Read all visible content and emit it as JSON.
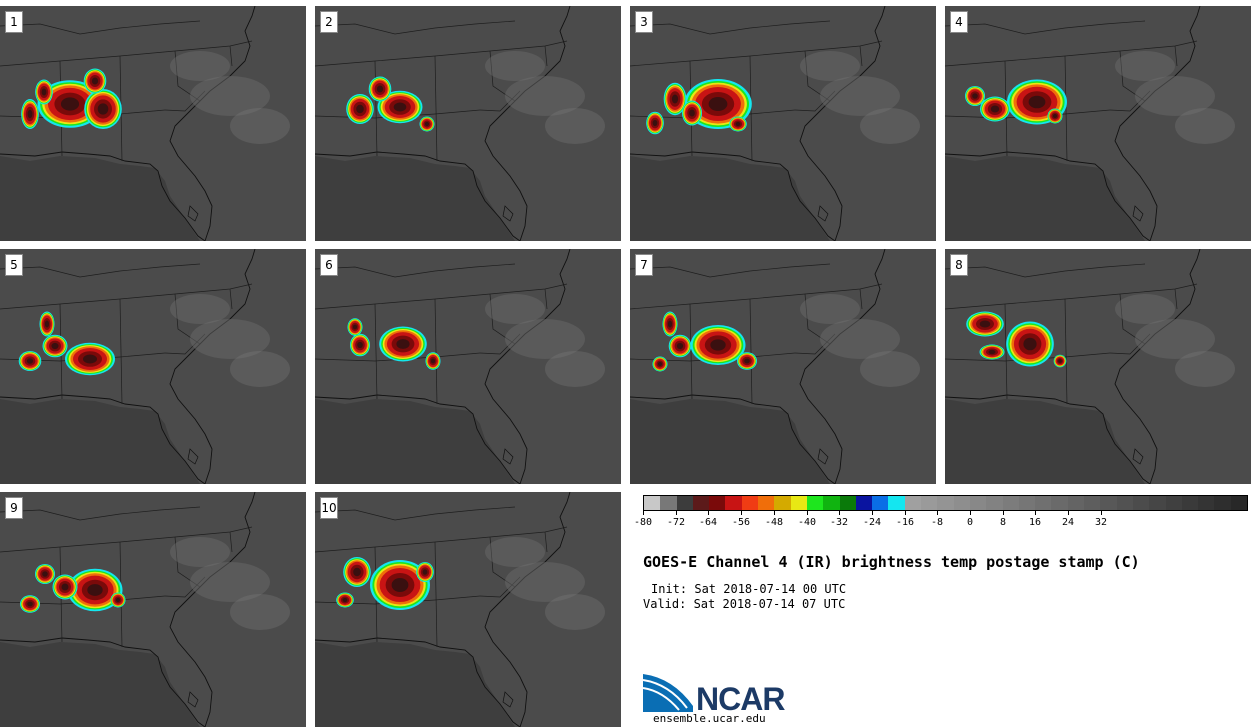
{
  "panels": [
    {
      "label": "1",
      "storms": [
        [
          70,
          98,
          26,
          19
        ],
        [
          103,
          103,
          15,
          16
        ],
        [
          44,
          86,
          7,
          10
        ],
        [
          30,
          108,
          7,
          12
        ],
        [
          95,
          75,
          9,
          10
        ]
      ]
    },
    {
      "label": "2",
      "storms": [
        [
          85,
          101,
          18,
          13
        ],
        [
          45,
          103,
          11,
          12
        ],
        [
          65,
          83,
          9,
          10
        ],
        [
          112,
          118,
          6,
          6
        ]
      ]
    },
    {
      "label": "3",
      "storms": [
        [
          88,
          98,
          27,
          20
        ],
        [
          45,
          93,
          9,
          13
        ],
        [
          62,
          107,
          8,
          10
        ],
        [
          25,
          117,
          7,
          9
        ],
        [
          108,
          118,
          7,
          6
        ]
      ]
    },
    {
      "label": "4",
      "storms": [
        [
          92,
          96,
          24,
          18
        ],
        [
          50,
          103,
          12,
          10
        ],
        [
          110,
          110,
          6,
          6
        ],
        [
          30,
          90,
          8,
          8
        ]
      ]
    },
    {
      "label": "5",
      "storms": [
        [
          90,
          110,
          20,
          13
        ],
        [
          55,
          97,
          10,
          9
        ],
        [
          30,
          112,
          9,
          8
        ],
        [
          47,
          75,
          6,
          10
        ]
      ]
    },
    {
      "label": "6",
      "storms": [
        [
          88,
          95,
          19,
          14
        ],
        [
          45,
          96,
          8,
          9
        ],
        [
          118,
          112,
          6,
          7
        ],
        [
          40,
          78,
          6,
          7
        ]
      ]
    },
    {
      "label": "7",
      "storms": [
        [
          88,
          96,
          22,
          16
        ],
        [
          50,
          97,
          9,
          9
        ],
        [
          117,
          112,
          8,
          7
        ],
        [
          40,
          75,
          6,
          10
        ],
        [
          30,
          115,
          6,
          6
        ]
      ]
    },
    {
      "label": "8",
      "storms": [
        [
          85,
          95,
          19,
          18
        ],
        [
          40,
          75,
          15,
          10
        ],
        [
          47,
          103,
          10,
          6
        ],
        [
          115,
          112,
          5,
          5
        ]
      ]
    },
    {
      "label": "9",
      "storms": [
        [
          95,
          98,
          22,
          17
        ],
        [
          65,
          95,
          10,
          10
        ],
        [
          30,
          112,
          8,
          7
        ],
        [
          45,
          82,
          8,
          8
        ],
        [
          118,
          108,
          6,
          6
        ]
      ]
    },
    {
      "label": "10",
      "storms": [
        [
          85,
          93,
          24,
          20
        ],
        [
          42,
          80,
          11,
          12
        ],
        [
          110,
          80,
          7,
          8
        ],
        [
          30,
          108,
          7,
          6
        ]
      ]
    }
  ],
  "colorbar": {
    "colors": [
      "#c8c8c8",
      "#787878",
      "#3c3c3c",
      "#5c1a1a",
      "#7a0a0a",
      "#c81414",
      "#f03c14",
      "#f06e0a",
      "#d4aa00",
      "#e8e814",
      "#1ee61e",
      "#10b410",
      "#0a7a0a",
      "#0a14a0",
      "#0a6ee6",
      "#14e6f0",
      "#a0a0a0",
      "#9a9a9a",
      "#949494",
      "#8e8e8e",
      "#888888",
      "#828282",
      "#7c7c7c",
      "#767676",
      "#707070",
      "#6a6a6a",
      "#646464",
      "#5e5e5e",
      "#585858",
      "#525252",
      "#4c4c4c",
      "#464646",
      "#404040",
      "#3a3a3a",
      "#343434",
      "#2e2e2e",
      "#282828"
    ],
    "ticks": [
      "-80",
      "-72",
      "-64",
      "-56",
      "-48",
      "-40",
      "-32",
      "-24",
      "-16",
      "-8",
      "0",
      "8",
      "16",
      "24",
      "32"
    ]
  },
  "title": "GOES-E Channel 4 (IR) brightness temp postage stamp (C)",
  "init": "Init: Sat 2018-07-14 00 UTC",
  "valid": "Valid: Sat 2018-07-14 07 UTC",
  "logo_text": "NCAR",
  "site": "ensemble.ucar.edu"
}
